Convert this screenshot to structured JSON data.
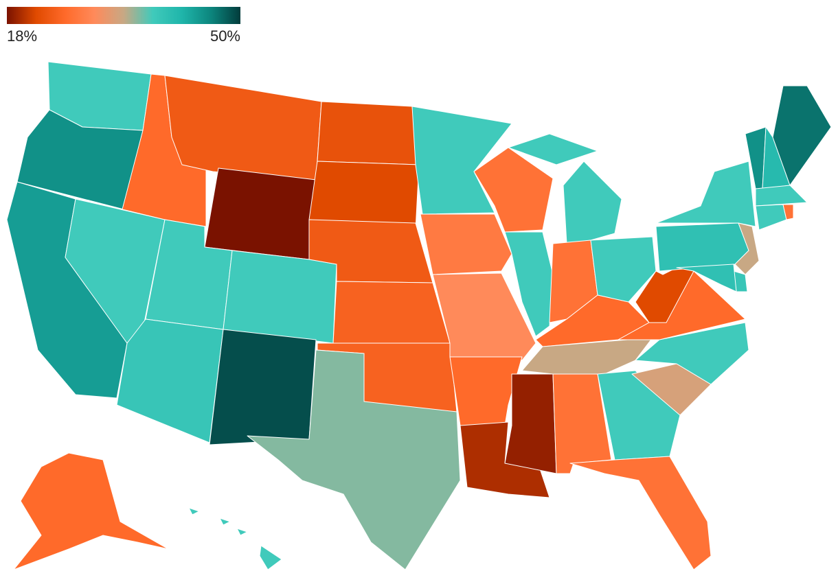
{
  "legend": {
    "colors": [
      "#7a1200",
      "#e04a00",
      "#ff6a2a",
      "#ff8a5a",
      "#c8a884",
      "#40cabb",
      "#1fb5aa",
      "#0c857d",
      "#023c3c"
    ],
    "min": {
      "value": 18,
      "label": "18%"
    },
    "max": {
      "value": 50,
      "label": "50%"
    }
  },
  "map": {
    "values": [
      38,
      45,
      44,
      38,
      26,
      24,
      18,
      38,
      38,
      39,
      49,
      23,
      22,
      24,
      25,
      25,
      36,
      38,
      28,
      30,
      26,
      20,
      19,
      27,
      38,
      38,
      27,
      38,
      26,
      34,
      27,
      38,
      27,
      33,
      38,
      26,
      22,
      40,
      38,
      45,
      41,
      47,
      38,
      38,
      27,
      34,
      39,
      40,
      26,
      38
    ]
  }
}
